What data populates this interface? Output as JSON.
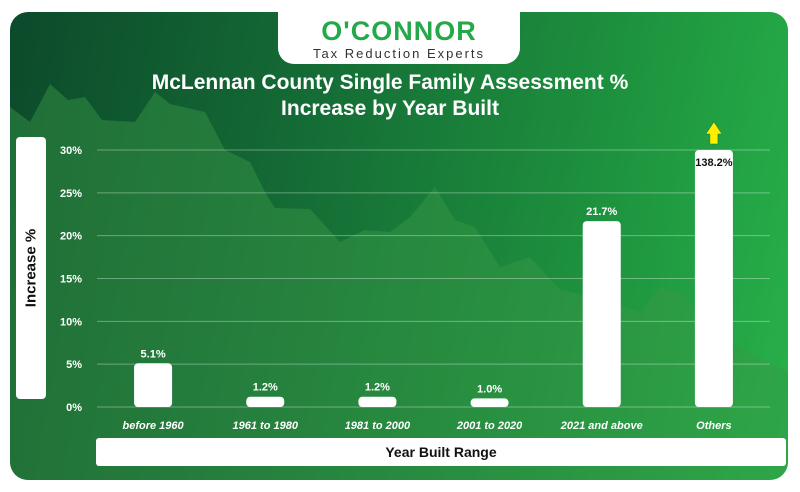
{
  "logo": {
    "name": "O'CONNOR",
    "tagline": "Tax Reduction Experts"
  },
  "colors": {
    "card_dark": "#0c4a2b",
    "card_light": "#27b14a",
    "brand_green": "#25a84a",
    "bar": "#ffffff",
    "arrow": "#ffee00"
  },
  "chart_data": {
    "type": "bar",
    "title": "McLennan County Single Family Assessment % Increase by Year Built",
    "title_lines": [
      "McLennan County Single Family Assessment %",
      "Increase by Year Built"
    ],
    "xlabel": "Year Built Range",
    "ylabel": "Increase %",
    "categories": [
      "before 1960",
      "1961 to 1980",
      "1981 to 2000",
      "2001 to 2020",
      "2021 and above",
      "Others"
    ],
    "values": [
      5.1,
      1.2,
      1.2,
      1.0,
      21.7,
      138.2
    ],
    "data_labels": [
      "5.1%",
      "1.2%",
      "1.2%",
      "1.0%",
      "21.7%",
      "138.2%"
    ],
    "ylim": [
      0,
      30
    ],
    "yticks": [
      "0%",
      "5%",
      "10%",
      "15%",
      "20%",
      "25%",
      "30%"
    ],
    "clipped_above_ylim": [
      "Others"
    ],
    "grid": "horizontal",
    "legend": "none"
  }
}
